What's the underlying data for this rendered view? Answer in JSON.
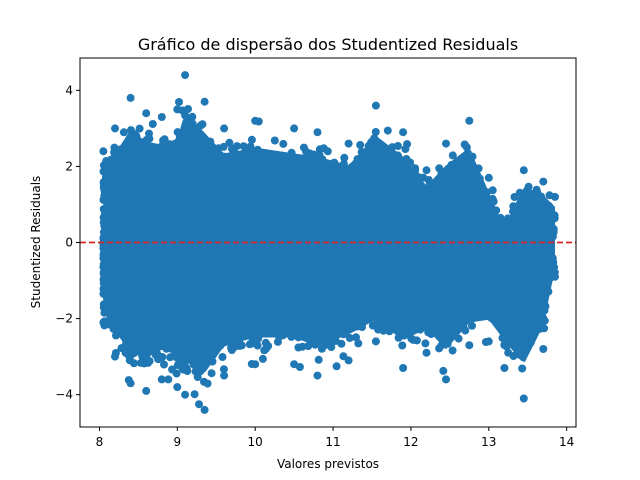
{
  "chart_data": {
    "type": "scatter",
    "title": "Gráfico de dispersão dos Studentized Residuals",
    "xlabel": "Valores previstos",
    "ylabel": "Studentized Residuals",
    "xlim": [
      7.75,
      14.12
    ],
    "ylim": [
      -4.85,
      4.85
    ],
    "xticks": [
      8,
      9,
      10,
      11,
      12,
      13,
      14
    ],
    "yticks": [
      -4,
      -2,
      0,
      2,
      4
    ],
    "grid": false,
    "legend": "none",
    "marker_color": "#1f77b4",
    "reference_line": {
      "y": 0,
      "color": "#d62728",
      "style": "dashed"
    },
    "series": [
      {
        "values_envelope": [
          {
            "x": 8.05,
            "y_min": -2.1,
            "y_max": 2.4
          },
          {
            "x": 8.2,
            "y_min": -3.0,
            "y_max": 3.0
          },
          {
            "x": 8.4,
            "y_min": -3.7,
            "y_max": 3.8
          },
          {
            "x": 8.6,
            "y_min": -3.9,
            "y_max": 3.4
          },
          {
            "x": 8.8,
            "y_min": -3.6,
            "y_max": 3.3
          },
          {
            "x": 9.0,
            "y_min": -3.8,
            "y_max": 3.5
          },
          {
            "x": 9.1,
            "y_min": -4.0,
            "y_max": 4.4
          },
          {
            "x": 9.35,
            "y_min": -4.4,
            "y_max": 3.7
          },
          {
            "x": 9.6,
            "y_min": -3.5,
            "y_max": 3.0
          },
          {
            "x": 10.0,
            "y_min": -3.2,
            "y_max": 3.2
          },
          {
            "x": 10.5,
            "y_min": -3.2,
            "y_max": 3.0
          },
          {
            "x": 10.8,
            "y_min": -3.5,
            "y_max": 2.9
          },
          {
            "x": 11.2,
            "y_min": -3.1,
            "y_max": 2.6
          },
          {
            "x": 11.55,
            "y_min": -2.6,
            "y_max": 3.6
          },
          {
            "x": 11.9,
            "y_min": -3.3,
            "y_max": 2.9
          },
          {
            "x": 12.2,
            "y_min": -2.9,
            "y_max": 1.9
          },
          {
            "x": 12.45,
            "y_min": -3.6,
            "y_max": 2.6
          },
          {
            "x": 12.75,
            "y_min": -2.7,
            "y_max": 3.2
          },
          {
            "x": 13.0,
            "y_min": -2.6,
            "y_max": 1.7
          },
          {
            "x": 13.2,
            "y_min": -3.3,
            "y_max": 0.5
          },
          {
            "x": 13.45,
            "y_min": -4.1,
            "y_max": 1.9
          },
          {
            "x": 13.7,
            "y_min": -2.8,
            "y_max": 1.6
          },
          {
            "x": 13.85,
            "y_min": -0.9,
            "y_max": 1.2
          }
        ]
      }
    ]
  }
}
